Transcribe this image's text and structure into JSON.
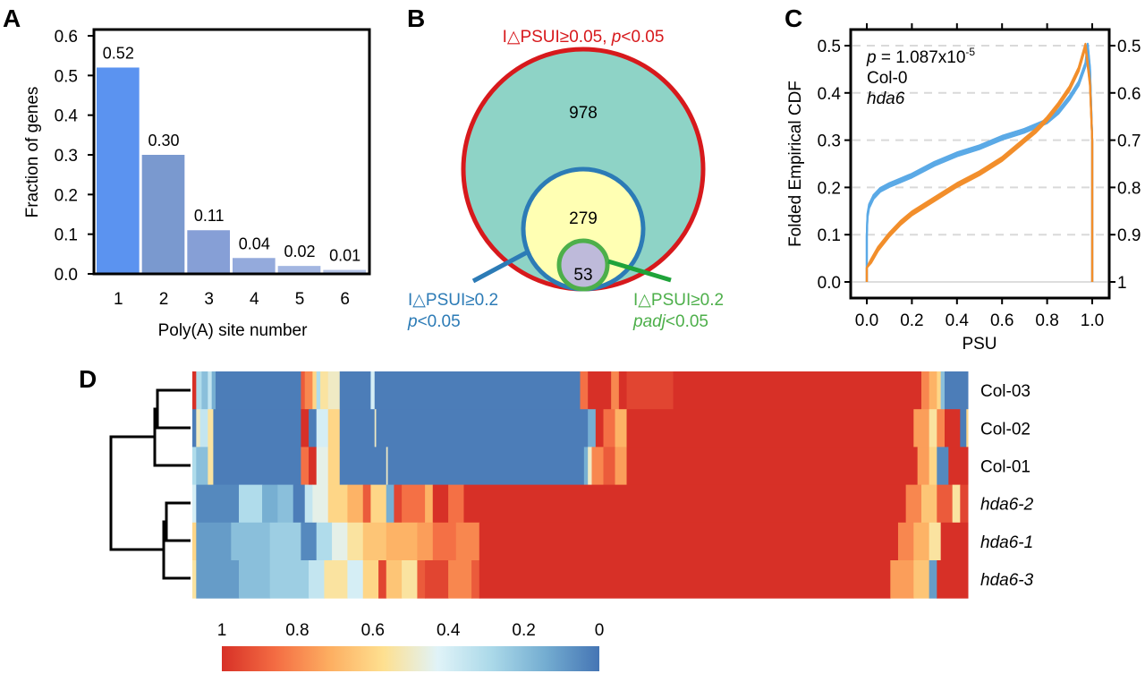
{
  "chart_data": [
    {
      "panel": "A",
      "type": "bar",
      "title": "",
      "xlabel": "Poly(A) site number",
      "ylabel": "Fraction of genes",
      "categories": [
        "1",
        "2",
        "3",
        "4",
        "5",
        "6"
      ],
      "values": [
        0.52,
        0.3,
        0.11,
        0.04,
        0.02,
        0.01
      ],
      "value_labels": [
        "0.52",
        "0.30",
        "0.11",
        "0.04",
        "0.02",
        "0.01"
      ],
      "bar_colors": [
        "#5b93f0",
        "#7a99cf",
        "#869fd6",
        "#94aadc",
        "#a3b6e1",
        "#b4c3e6"
      ],
      "ylim": [
        0,
        0.6
      ],
      "yticks": [
        "0.0",
        "0.1",
        "0.2",
        "0.3",
        "0.4",
        "0.5",
        "0.6"
      ],
      "grid": false
    },
    {
      "panel": "B",
      "type": "venn",
      "sets": [
        {
          "name": "outer",
          "label_main": "I△PSUI≥0.05, ",
          "label_italic": "p",
          "label_tail": "<0.05",
          "count": "978",
          "fill": "#8ed3c6",
          "stroke": "#d7191c"
        },
        {
          "name": "middle",
          "label_line1": "I△PSUI≥0.2",
          "label_italic": "p",
          "label_tail": "<0.05",
          "count": "279",
          "fill": "#ffffb3",
          "stroke": "#2c7bb6"
        },
        {
          "name": "inner",
          "label_line1": "I△PSUI≥0.2",
          "label_italic": "padj",
          "label_tail": "<0.05",
          "count": "53",
          "fill": "#bebada",
          "stroke": "#4daf4a"
        }
      ]
    },
    {
      "panel": "C",
      "type": "line",
      "xlabel": "PSU",
      "ylabel": "Folded Empirical CDF",
      "xlim": [
        0,
        1
      ],
      "ylim": [
        0,
        0.5
      ],
      "xticks": [
        "0.0",
        "0.2",
        "0.4",
        "0.6",
        "0.8",
        "1.0"
      ],
      "yticks_left": [
        "0.0",
        "0.1",
        "0.2",
        "0.3",
        "0.4",
        "0.5"
      ],
      "yticks_right": [
        "1",
        "0.9",
        "0.8",
        "0.7",
        "0.6",
        "0.5"
      ],
      "grid": "dashed horizontal",
      "annotation": {
        "p_italic": "p",
        "p_text": " = 1.087x10",
        "p_exp": "-5"
      },
      "legend": [
        {
          "name": "Col-0",
          "color": "#f28e2b",
          "italic": false
        },
        {
          "name": "hda6",
          "color": "#5aa9e6",
          "italic": true
        }
      ],
      "series": [
        {
          "name": "hda6",
          "color": "#5aa9e6",
          "x": [
            0.0,
            0.0,
            0.003,
            0.01,
            0.03,
            0.06,
            0.1,
            0.15,
            0.2,
            0.3,
            0.4,
            0.5,
            0.6,
            0.7,
            0.75,
            0.8,
            0.85,
            0.9,
            0.94,
            0.97,
            0.98,
            0.99,
            1.0,
            1.0
          ],
          "y": [
            0.0,
            0.1,
            0.14,
            0.16,
            0.18,
            0.195,
            0.205,
            0.215,
            0.225,
            0.25,
            0.27,
            0.285,
            0.305,
            0.32,
            0.33,
            0.34,
            0.36,
            0.39,
            0.42,
            0.46,
            0.5,
            0.45,
            0.3,
            0.0
          ],
          "replicates": 3
        },
        {
          "name": "Col-0",
          "color": "#f28e2b",
          "x": [
            0.0,
            0.0,
            0.02,
            0.05,
            0.1,
            0.15,
            0.2,
            0.3,
            0.4,
            0.5,
            0.6,
            0.7,
            0.75,
            0.8,
            0.85,
            0.9,
            0.94,
            0.97,
            0.99,
            1.0,
            1.0
          ],
          "y": [
            0.0,
            0.03,
            0.045,
            0.07,
            0.1,
            0.125,
            0.145,
            0.175,
            0.205,
            0.23,
            0.26,
            0.3,
            0.32,
            0.345,
            0.375,
            0.41,
            0.45,
            0.5,
            0.42,
            0.3,
            0.0
          ],
          "replicates": 3
        }
      ]
    },
    {
      "panel": "D",
      "type": "heatmap",
      "rows": [
        "Col-03",
        "Col-02",
        "Col-01",
        "hda6-2",
        "hda6-1",
        "hda6-3"
      ],
      "rows_italic": [
        false,
        false,
        false,
        true,
        true,
        true
      ],
      "colorbar": {
        "ticks": [
          "1",
          "0.8",
          "0.6",
          "0.4",
          "0.2",
          "0"
        ],
        "range": [
          1,
          0
        ],
        "stops": [
          "#d73027",
          "#f46d43",
          "#fdae61",
          "#fee090",
          "#e0f3f8",
          "#abd9e9",
          "#74add1",
          "#4575b4"
        ]
      },
      "dendrogram": {
        "clusters": [
          [
            "Col-03",
            "Col-02",
            "Col-01"
          ],
          [
            "hda6-2",
            "hda6-1",
            "hda6-3"
          ]
        ]
      },
      "segments": [
        [
          [
            0,
            0.005,
            1
          ],
          [
            0.005,
            0.012,
            0.3
          ],
          [
            0.012,
            0.02,
            0.2
          ],
          [
            0.02,
            0.025,
            0.35
          ],
          [
            0.025,
            0.03,
            0.15
          ],
          [
            0.03,
            0.14,
            0.02
          ],
          [
            0.14,
            0.145,
            0.9
          ],
          [
            0.145,
            0.155,
            0.8
          ],
          [
            0.155,
            0.16,
            0.6
          ],
          [
            0.16,
            0.165,
            0.3
          ],
          [
            0.165,
            0.175,
            0.55
          ],
          [
            0.175,
            0.19,
            0.5
          ],
          [
            0.19,
            0.23,
            0.02
          ],
          [
            0.23,
            0.235,
            0.4
          ],
          [
            0.235,
            0.5,
            0.02
          ],
          [
            0.5,
            0.51,
            0.85
          ],
          [
            0.51,
            0.54,
            1
          ],
          [
            0.54,
            0.55,
            0.8
          ],
          [
            0.55,
            0.56,
            1
          ],
          [
            0.56,
            0.62,
            0.95
          ],
          [
            0.62,
            0.94,
            1
          ],
          [
            0.94,
            0.95,
            0.8
          ],
          [
            0.95,
            0.96,
            0.7
          ],
          [
            0.96,
            0.965,
            0.6
          ],
          [
            0.965,
            0.97,
            0.2
          ],
          [
            0.97,
            1.0,
            0.02
          ]
        ],
        [
          [
            0,
            0.005,
            0.02
          ],
          [
            0.005,
            0.01,
            0.5
          ],
          [
            0.01,
            0.02,
            0.35
          ],
          [
            0.02,
            0.027,
            0.55
          ],
          [
            0.027,
            0.14,
            0.02
          ],
          [
            0.14,
            0.15,
            1
          ],
          [
            0.15,
            0.16,
            0.02
          ],
          [
            0.16,
            0.175,
            0.4
          ],
          [
            0.175,
            0.19,
            0.6
          ],
          [
            0.19,
            0.235,
            0.02
          ],
          [
            0.235,
            0.237,
            0.5
          ],
          [
            0.237,
            0.51,
            0.02
          ],
          [
            0.51,
            0.52,
            0.15
          ],
          [
            0.52,
            0.53,
            1
          ],
          [
            0.53,
            0.545,
            0.85
          ],
          [
            0.545,
            0.56,
            0.7
          ],
          [
            0.56,
            0.93,
            1
          ],
          [
            0.93,
            0.95,
            0.75
          ],
          [
            0.95,
            0.96,
            0.55
          ],
          [
            0.96,
            0.97,
            0.8
          ],
          [
            0.97,
            0.99,
            1
          ],
          [
            0.99,
            0.998,
            0.02
          ],
          [
            0.998,
            1.0,
            0.6
          ]
        ],
        [
          [
            0,
            0.005,
            0.3
          ],
          [
            0.005,
            0.02,
            0.2
          ],
          [
            0.02,
            0.027,
            0.55
          ],
          [
            0.027,
            0.14,
            0.02
          ],
          [
            0.14,
            0.15,
            0.85
          ],
          [
            0.15,
            0.16,
            1
          ],
          [
            0.16,
            0.175,
            0.45
          ],
          [
            0.175,
            0.19,
            0.6
          ],
          [
            0.19,
            0.25,
            0.02
          ],
          [
            0.25,
            0.252,
            0.5
          ],
          [
            0.252,
            0.505,
            0.02
          ],
          [
            0.505,
            0.51,
            0.15
          ],
          [
            0.51,
            0.515,
            0.5
          ],
          [
            0.515,
            0.53,
            0.8
          ],
          [
            0.53,
            0.545,
            0.9
          ],
          [
            0.545,
            0.56,
            0.75
          ],
          [
            0.56,
            0.935,
            1
          ],
          [
            0.935,
            0.95,
            0.75
          ],
          [
            0.95,
            0.96,
            0.6
          ],
          [
            0.96,
            0.975,
            0.05
          ],
          [
            0.975,
            1.0,
            1
          ]
        ],
        [
          [
            0,
            0.005,
            0.4
          ],
          [
            0.005,
            0.06,
            0.05
          ],
          [
            0.06,
            0.09,
            0.3
          ],
          [
            0.09,
            0.11,
            0.15
          ],
          [
            0.11,
            0.13,
            0.2
          ],
          [
            0.13,
            0.145,
            0.02
          ],
          [
            0.145,
            0.155,
            0.35
          ],
          [
            0.155,
            0.175,
            0.45
          ],
          [
            0.175,
            0.2,
            0.6
          ],
          [
            0.2,
            0.22,
            0.7
          ],
          [
            0.22,
            0.23,
            0.9
          ],
          [
            0.23,
            0.25,
            0.6
          ],
          [
            0.25,
            0.26,
            0.15
          ],
          [
            0.26,
            0.27,
            0.95
          ],
          [
            0.27,
            0.3,
            0.85
          ],
          [
            0.3,
            0.31,
            0.7
          ],
          [
            0.31,
            0.33,
            1
          ],
          [
            0.33,
            0.35,
            0.85
          ],
          [
            0.35,
            0.92,
            1
          ],
          [
            0.92,
            0.94,
            0.8
          ],
          [
            0.94,
            0.96,
            0.65
          ],
          [
            0.96,
            0.98,
            0.9
          ],
          [
            0.98,
            0.99,
            0.55
          ],
          [
            0.99,
            1.0,
            0.95
          ]
        ],
        [
          [
            0,
            0.005,
            0.6
          ],
          [
            0.005,
            0.05,
            0.1
          ],
          [
            0.05,
            0.1,
            0.2
          ],
          [
            0.1,
            0.14,
            0.25
          ],
          [
            0.14,
            0.16,
            0.05
          ],
          [
            0.16,
            0.18,
            0.3
          ],
          [
            0.18,
            0.2,
            0.45
          ],
          [
            0.2,
            0.22,
            0.55
          ],
          [
            0.22,
            0.25,
            0.65
          ],
          [
            0.25,
            0.29,
            0.7
          ],
          [
            0.29,
            0.31,
            0.75
          ],
          [
            0.31,
            0.34,
            0.85
          ],
          [
            0.34,
            0.37,
            0.8
          ],
          [
            0.37,
            0.91,
            1
          ],
          [
            0.91,
            0.93,
            0.8
          ],
          [
            0.93,
            0.95,
            0.7
          ],
          [
            0.95,
            0.965,
            0.55
          ],
          [
            0.965,
            1.0,
            1
          ]
        ],
        [
          [
            0,
            0.005,
            0.55
          ],
          [
            0.005,
            0.06,
            0.1
          ],
          [
            0.06,
            0.1,
            0.2
          ],
          [
            0.1,
            0.15,
            0.25
          ],
          [
            0.15,
            0.17,
            0.35
          ],
          [
            0.17,
            0.2,
            0.55
          ],
          [
            0.2,
            0.22,
            0.4
          ],
          [
            0.22,
            0.24,
            0.6
          ],
          [
            0.24,
            0.25,
            0.95
          ],
          [
            0.25,
            0.27,
            0.65
          ],
          [
            0.27,
            0.29,
            0.55
          ],
          [
            0.29,
            0.3,
            0.9
          ],
          [
            0.3,
            0.33,
            0.95
          ],
          [
            0.33,
            0.36,
            0.8
          ],
          [
            0.36,
            0.37,
            0.9
          ],
          [
            0.37,
            0.9,
            1
          ],
          [
            0.9,
            0.93,
            0.75
          ],
          [
            0.93,
            0.95,
            0.65
          ],
          [
            0.95,
            0.96,
            0.1
          ],
          [
            0.96,
            1.0,
            1
          ]
        ]
      ]
    }
  ],
  "panels": {
    "A": "A",
    "B": "B",
    "C": "C",
    "D": "D"
  }
}
